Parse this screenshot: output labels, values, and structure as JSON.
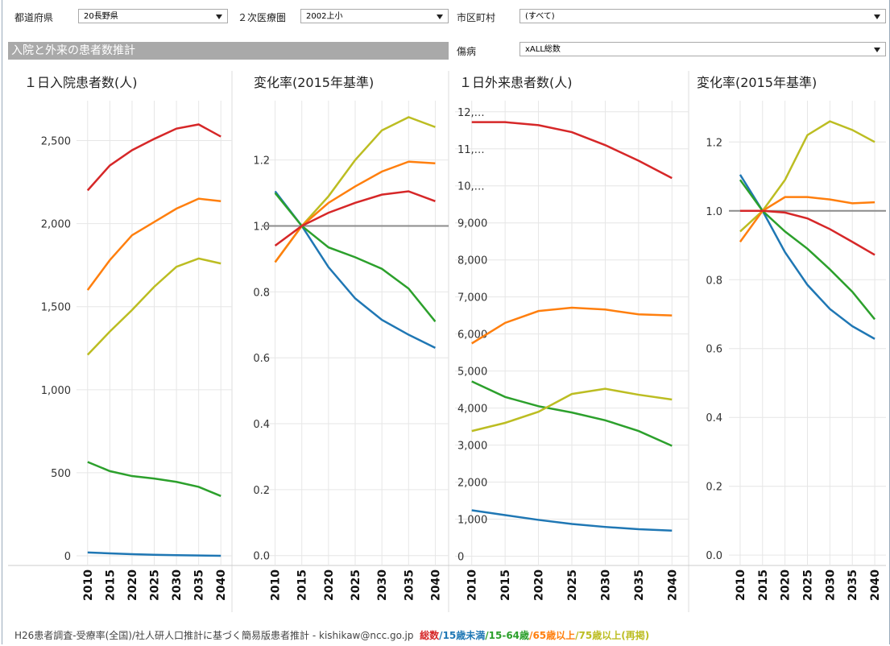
{
  "filters": [
    {
      "label": "都道府県",
      "value": "20長野県"
    },
    {
      "label": "２次医療圏",
      "value": "2002上小"
    },
    {
      "label": "市区町村",
      "value": "(すべて)"
    },
    {
      "label": "傷病",
      "value": "xALL総数"
    }
  ],
  "section_title": "入院と外来の患者数推計",
  "chart_data": [
    {
      "type": "line",
      "title": "１日入院患者数(人)",
      "categories": [
        "2010",
        "2015",
        "2020",
        "2025",
        "2030",
        "2035",
        "2040"
      ],
      "series": [
        {
          "color": "#1f77b4",
          "values": [
            20,
            15,
            10,
            6,
            4,
            2,
            0
          ]
        },
        {
          "color": "#2ca02c",
          "values": [
            565,
            510,
            480,
            465,
            445,
            415,
            360
          ]
        },
        {
          "color": "#bcbd22",
          "values": [
            1210,
            1350,
            1480,
            1620,
            1740,
            1790,
            1760
          ]
        },
        {
          "color": "#ff7f0e",
          "values": [
            1600,
            1780,
            1930,
            2010,
            2090,
            2150,
            2135
          ]
        },
        {
          "color": "#d62728",
          "values": [
            2200,
            2350,
            2442,
            2510,
            2572,
            2597,
            2524
          ]
        }
      ],
      "ylim": [
        -58,
        2740
      ],
      "yticks": [
        0,
        500,
        {
          "value": 1000,
          "label": "1,000"
        },
        {
          "value": 1500,
          "label": "1,500"
        },
        {
          "value": 2000,
          "label": "2,000"
        },
        {
          "value": 2500,
          "label": "2,500"
        }
      ],
      "grid": true
    },
    {
      "type": "line",
      "title": "変化率(2015年基準)",
      "categories": [
        "2010",
        "2015",
        "2020",
        "2025",
        "2030",
        "2035",
        "2040"
      ],
      "series": [
        {
          "color": "#1f77b4",
          "values": [
            1.105,
            1.0,
            0.875,
            0.78,
            0.715,
            0.67,
            0.63
          ]
        },
        {
          "color": "#2ca02c",
          "values": [
            1.1,
            1.0,
            0.935,
            0.905,
            0.87,
            0.81,
            0.71
          ]
        },
        {
          "color": "#bcbd22",
          "values": [
            0.89,
            1.0,
            1.09,
            1.2,
            1.29,
            1.33,
            1.3
          ]
        },
        {
          "color": "#ff7f0e",
          "values": [
            0.89,
            1.0,
            1.07,
            1.12,
            1.165,
            1.195,
            1.19
          ]
        },
        {
          "color": "#d62728",
          "values": [
            0.94,
            1.0,
            1.04,
            1.07,
            1.095,
            1.105,
            1.075
          ]
        }
      ],
      "ylim": [
        -0.03,
        1.38
      ],
      "yticks": [
        {
          "value": 0,
          "label": "0.0"
        },
        0.2,
        0.4,
        0.6,
        0.8,
        {
          "value": 1,
          "label": "1.0"
        },
        1.2
      ],
      "reference_line": 1,
      "grid": true
    },
    {
      "type": "line",
      "title": "１日外来患者数(人)",
      "categories": [
        "2010",
        "2015",
        "2020",
        "2025",
        "2030",
        "2035",
        "2040"
      ],
      "series": [
        {
          "color": "#1f77b4",
          "values": [
            1240,
            1110,
            980,
            870,
            790,
            730,
            690
          ]
        },
        {
          "color": "#2ca02c",
          "values": [
            4720,
            4300,
            4050,
            3880,
            3670,
            3380,
            2980
          ]
        },
        {
          "color": "#bcbd22",
          "values": [
            3380,
            3600,
            3900,
            4380,
            4520,
            4360,
            4230
          ]
        },
        {
          "color": "#ff7f0e",
          "values": [
            5745,
            6300,
            6620,
            6710,
            6660,
            6530,
            6500
          ]
        },
        {
          "color": "#d62728",
          "values": [
            11720,
            11720,
            11640,
            11450,
            11100,
            10680,
            10210
          ]
        }
      ],
      "ylim": [
        -250,
        12300
      ],
      "yticks": [
        0,
        {
          "value": 1000,
          "label": "1,000"
        },
        {
          "value": 2000,
          "label": "2,000"
        },
        {
          "value": 3000,
          "label": "3,000"
        },
        {
          "value": 4000,
          "label": "4,000"
        },
        {
          "value": 5000,
          "label": "5,000"
        },
        {
          "value": 6000,
          "label": "6,000"
        },
        {
          "value": 7000,
          "label": "7,000"
        },
        {
          "value": 8000,
          "label": "8,000"
        },
        {
          "value": 9000,
          "label": "9,000"
        },
        {
          "value": 10000,
          "label": "10,…"
        },
        {
          "value": 11000,
          "label": "11,…"
        },
        {
          "value": 12000,
          "label": "12,…"
        }
      ],
      "grid": true
    },
    {
      "type": "line",
      "title": "変化率(2015年基準)",
      "categories": [
        "2010",
        "2015",
        "2020",
        "2025",
        "2030",
        "2035",
        "2040"
      ],
      "series": [
        {
          "color": "#1f77b4",
          "values": [
            1.105,
            1.0,
            0.88,
            0.785,
            0.715,
            0.665,
            0.628
          ]
        },
        {
          "color": "#2ca02c",
          "values": [
            1.09,
            1.0,
            0.94,
            0.89,
            0.83,
            0.765,
            0.685
          ]
        },
        {
          "color": "#bcbd22",
          "values": [
            0.94,
            1.0,
            1.09,
            1.22,
            1.26,
            1.235,
            1.2
          ]
        },
        {
          "color": "#ff7f0e",
          "values": [
            0.91,
            1.0,
            1.04,
            1.04,
            1.033,
            1.022,
            1.025
          ]
        },
        {
          "color": "#d62728",
          "values": [
            1.0,
            1.0,
            0.995,
            0.978,
            0.947,
            0.91,
            0.872
          ]
        }
      ],
      "ylim": [
        -0.03,
        1.32
      ],
      "yticks": [
        {
          "value": 0,
          "label": "0.0"
        },
        0.2,
        0.4,
        0.6,
        0.8,
        {
          "value": 1,
          "label": "1.0"
        },
        1.2
      ],
      "reference_line": 1,
      "grid": true
    }
  ],
  "footer": {
    "source": "H26患者調査-受療率(全国)/社人研人口推計に基づく簡易版患者推計 - kishikaw@ncc.go.jp",
    "separator": "/",
    "legend": [
      {
        "name": "総数",
        "color": "#d62728"
      },
      {
        "name": "15歳未満",
        "color": "#1f77b4"
      },
      {
        "name": "15-64歳",
        "color": "#2ca02c"
      },
      {
        "name": "65歳以上",
        "color": "#ff7f0e"
      },
      {
        "name": "75歳以上(再掲)",
        "color": "#bcbd22"
      }
    ]
  }
}
